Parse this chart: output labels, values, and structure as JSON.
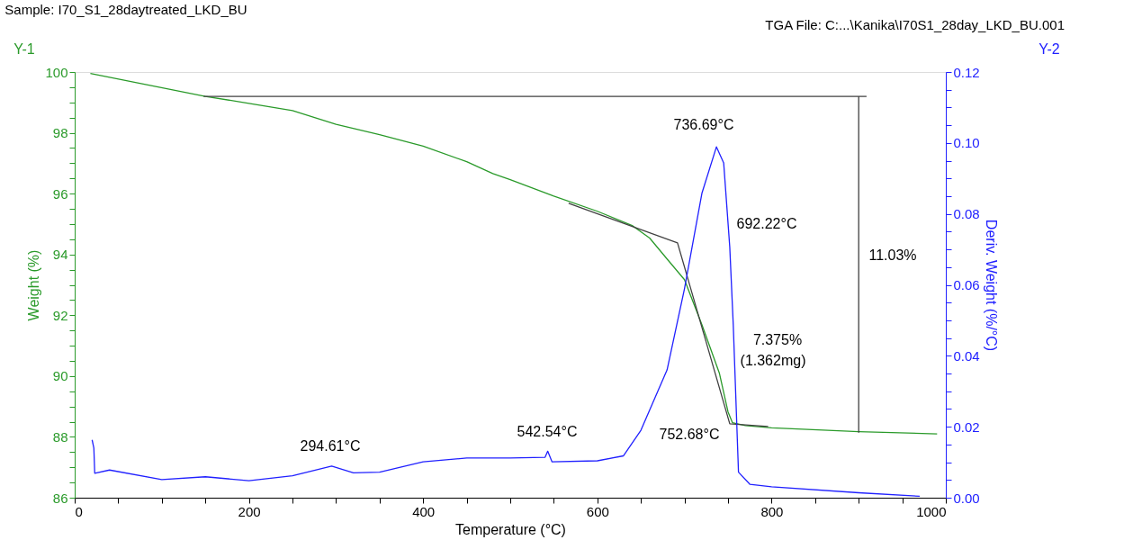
{
  "chart_data": {
    "type": "line",
    "title": "Sample: I70_S1_28daytreated_LKD_BU",
    "subtitle": "TGA File: C:...\\Kanika\\I70S1_28day_LKD_BU.001",
    "xlabel": "Temperature (°C)",
    "ylabel": "Weight (%)",
    "y2label": "Deriv. Weight (%/°C)",
    "xlim": [
      0,
      1000
    ],
    "xticks": [
      0,
      {
        "value": 50,
        "label": null
      },
      {
        "value": 100,
        "label": null
      },
      {
        "value": 150,
        "label": null
      },
      200,
      {
        "value": 250,
        "label": null
      },
      {
        "value": 300,
        "label": null
      },
      {
        "value": 350,
        "label": null
      },
      400,
      {
        "value": 450,
        "label": null
      },
      {
        "value": 500,
        "label": null
      },
      {
        "value": 550,
        "label": null
      },
      600,
      {
        "value": 650,
        "label": null
      },
      {
        "value": 700,
        "label": null
      },
      {
        "value": 750,
        "label": null
      },
      800,
      {
        "value": 850,
        "label": null
      },
      {
        "value": 900,
        "label": null
      },
      {
        "value": 950,
        "label": null
      },
      1000
    ],
    "ylim": [
      86,
      100
    ],
    "yticks": [
      86,
      {
        "value": 86.5,
        "label": null
      },
      {
        "value": 87,
        "label": null
      },
      {
        "value": 87.5,
        "label": null
      },
      88,
      {
        "value": 88.5,
        "label": null
      },
      {
        "value": 89,
        "label": null
      },
      {
        "value": 89.5,
        "label": null
      },
      90,
      {
        "value": 90.5,
        "label": null
      },
      {
        "value": 91,
        "label": null
      },
      {
        "value": 91.5,
        "label": null
      },
      92,
      {
        "value": 92.5,
        "label": null
      },
      {
        "value": 93,
        "label": null
      },
      {
        "value": 93.5,
        "label": null
      },
      94,
      {
        "value": 94.5,
        "label": null
      },
      {
        "value": 95,
        "label": null
      },
      {
        "value": 95.5,
        "label": null
      },
      96,
      {
        "value": 96.5,
        "label": null
      },
      {
        "value": 97,
        "label": null
      },
      {
        "value": 97.5,
        "label": null
      },
      98,
      {
        "value": 98.5,
        "label": null
      },
      {
        "value": 99,
        "label": null
      },
      {
        "value": 99.5,
        "label": null
      },
      100
    ],
    "y2lim": [
      0,
      0.12
    ],
    "y2ticks": [
      {
        "value": 0,
        "label": "0.00"
      },
      {
        "value": 0.005,
        "label": null
      },
      {
        "value": 0.01,
        "label": null
      },
      {
        "value": 0.015,
        "label": null
      },
      {
        "value": 0.02,
        "label": "0.02"
      },
      {
        "value": 0.025,
        "label": null
      },
      {
        "value": 0.03,
        "label": null
      },
      {
        "value": 0.035,
        "label": null
      },
      {
        "value": 0.04,
        "label": "0.04"
      },
      {
        "value": 0.045,
        "label": null
      },
      {
        "value": 0.05,
        "label": null
      },
      {
        "value": 0.055,
        "label": null
      },
      {
        "value": 0.06,
        "label": "0.06"
      },
      {
        "value": 0.065,
        "label": null
      },
      {
        "value": 0.07,
        "label": null
      },
      {
        "value": 0.075,
        "label": null
      },
      {
        "value": 0.08,
        "label": "0.08"
      },
      {
        "value": 0.085,
        "label": null
      },
      {
        "value": 0.09,
        "label": null
      },
      {
        "value": 0.095,
        "label": null
      },
      {
        "value": 0.1,
        "label": "0.10"
      },
      {
        "value": 0.105,
        "label": null
      },
      {
        "value": 0.11,
        "label": null
      },
      {
        "value": 0.115,
        "label": null
      },
      {
        "value": 0.12,
        "label": "0.12"
      }
    ],
    "grid": false,
    "marker": "none",
    "line_style": "solid",
    "series": [
      {
        "type": "line",
        "axis": "y",
        "color": "#2a9a2a",
        "x": [
          18,
          150,
          200,
          250,
          300,
          350,
          400,
          450,
          480,
          500,
          550,
          600,
          640,
          660,
          680,
          700,
          720,
          740,
          750,
          755,
          770,
          800,
          900,
          990
        ],
        "values": [
          99.95,
          99.2,
          98.97,
          98.73,
          98.28,
          97.94,
          97.56,
          97.05,
          96.66,
          96.46,
          95.92,
          95.42,
          94.95,
          94.54,
          93.85,
          93.17,
          91.69,
          90.1,
          88.82,
          88.47,
          88.37,
          88.3,
          88.17,
          88.1
        ]
      },
      {
        "type": "line",
        "axis": "y2",
        "color": "#2020ff",
        "x": [
          20,
          22,
          23,
          40,
          100,
          150,
          200,
          250,
          295,
          320,
          350,
          400,
          450,
          500,
          540,
          543,
          548,
          600,
          630,
          650,
          680,
          700,
          720,
          736.69,
          745,
          752,
          756,
          762,
          775,
          800,
          900,
          970
        ],
        "values": [
          0.0163,
          0.014,
          0.0069,
          0.0078,
          0.0051,
          0.0059,
          0.0048,
          0.0062,
          0.0089,
          0.007,
          0.0072,
          0.0101,
          0.0112,
          0.0112,
          0.0114,
          0.0131,
          0.0101,
          0.0104,
          0.0118,
          0.019,
          0.036,
          0.0589,
          0.0858,
          0.0989,
          0.0944,
          0.0706,
          0.0487,
          0.0072,
          0.0038,
          0.0031,
          0.0014,
          0.0004
        ]
      },
      {
        "axis": "y",
        "color": "#404040",
        "x": [
          148,
          909
        ],
        "values": [
          99.2,
          99.2
        ]
      },
      {
        "axis": "y",
        "color": "#404040",
        "x": [
          900,
          900
        ],
        "values": [
          99.2,
          88.14
        ]
      },
      {
        "axis": "y",
        "color": "#404040",
        "x": [
          567,
          692,
          752,
          796
        ],
        "values": [
          95.68,
          94.38,
          88.43,
          88.34
        ]
      }
    ],
    "annotations": [
      "736.69°C",
      "692.22°C",
      "11.03%",
      "7.375%",
      "(1.362mg)",
      "752.68°C",
      "542.54°C",
      "294.61°C",
      "Y-1",
      "Y-2"
    ]
  }
}
